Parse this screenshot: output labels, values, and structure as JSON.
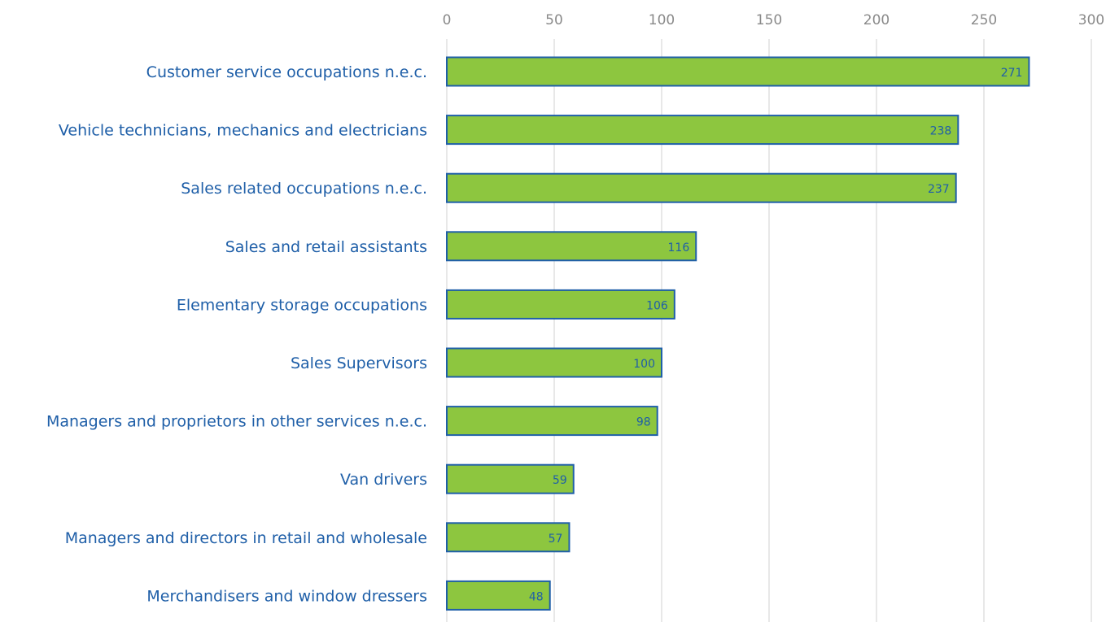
{
  "chart_data": {
    "type": "bar",
    "orientation": "horizontal",
    "title": "",
    "xlabel": "",
    "ylabel": "",
    "xlim": [
      0,
      300
    ],
    "x_ticks": [
      "0",
      "50",
      "100",
      "150",
      "200",
      "250",
      "300"
    ],
    "x_axis_position": "top",
    "grid": true,
    "legend": "none",
    "categories": [
      "Customer service occupations n.e.c.",
      "Vehicle technicians, mechanics and electricians",
      "Sales related occupations n.e.c.",
      "Sales and retail assistants",
      "Elementary storage occupations",
      "Sales Supervisors",
      "Managers and proprietors in other services n.e.c.",
      "Van drivers",
      "Managers and directors in retail and wholesale",
      "Merchandisers and window dressers"
    ],
    "values": [
      271,
      238,
      237,
      116,
      106,
      100,
      98,
      59,
      57,
      48
    ],
    "data_labels": [
      "271",
      "238",
      "237",
      "116",
      "106",
      "100",
      "98",
      "59",
      "57",
      "48"
    ],
    "colors": {
      "bar_fill": "#8dc63f",
      "bar_stroke": "#1f5fa8",
      "label_text": "#1f5fa8",
      "tick_text": "#8a8a8a",
      "grid": "#d9d9d9"
    }
  }
}
